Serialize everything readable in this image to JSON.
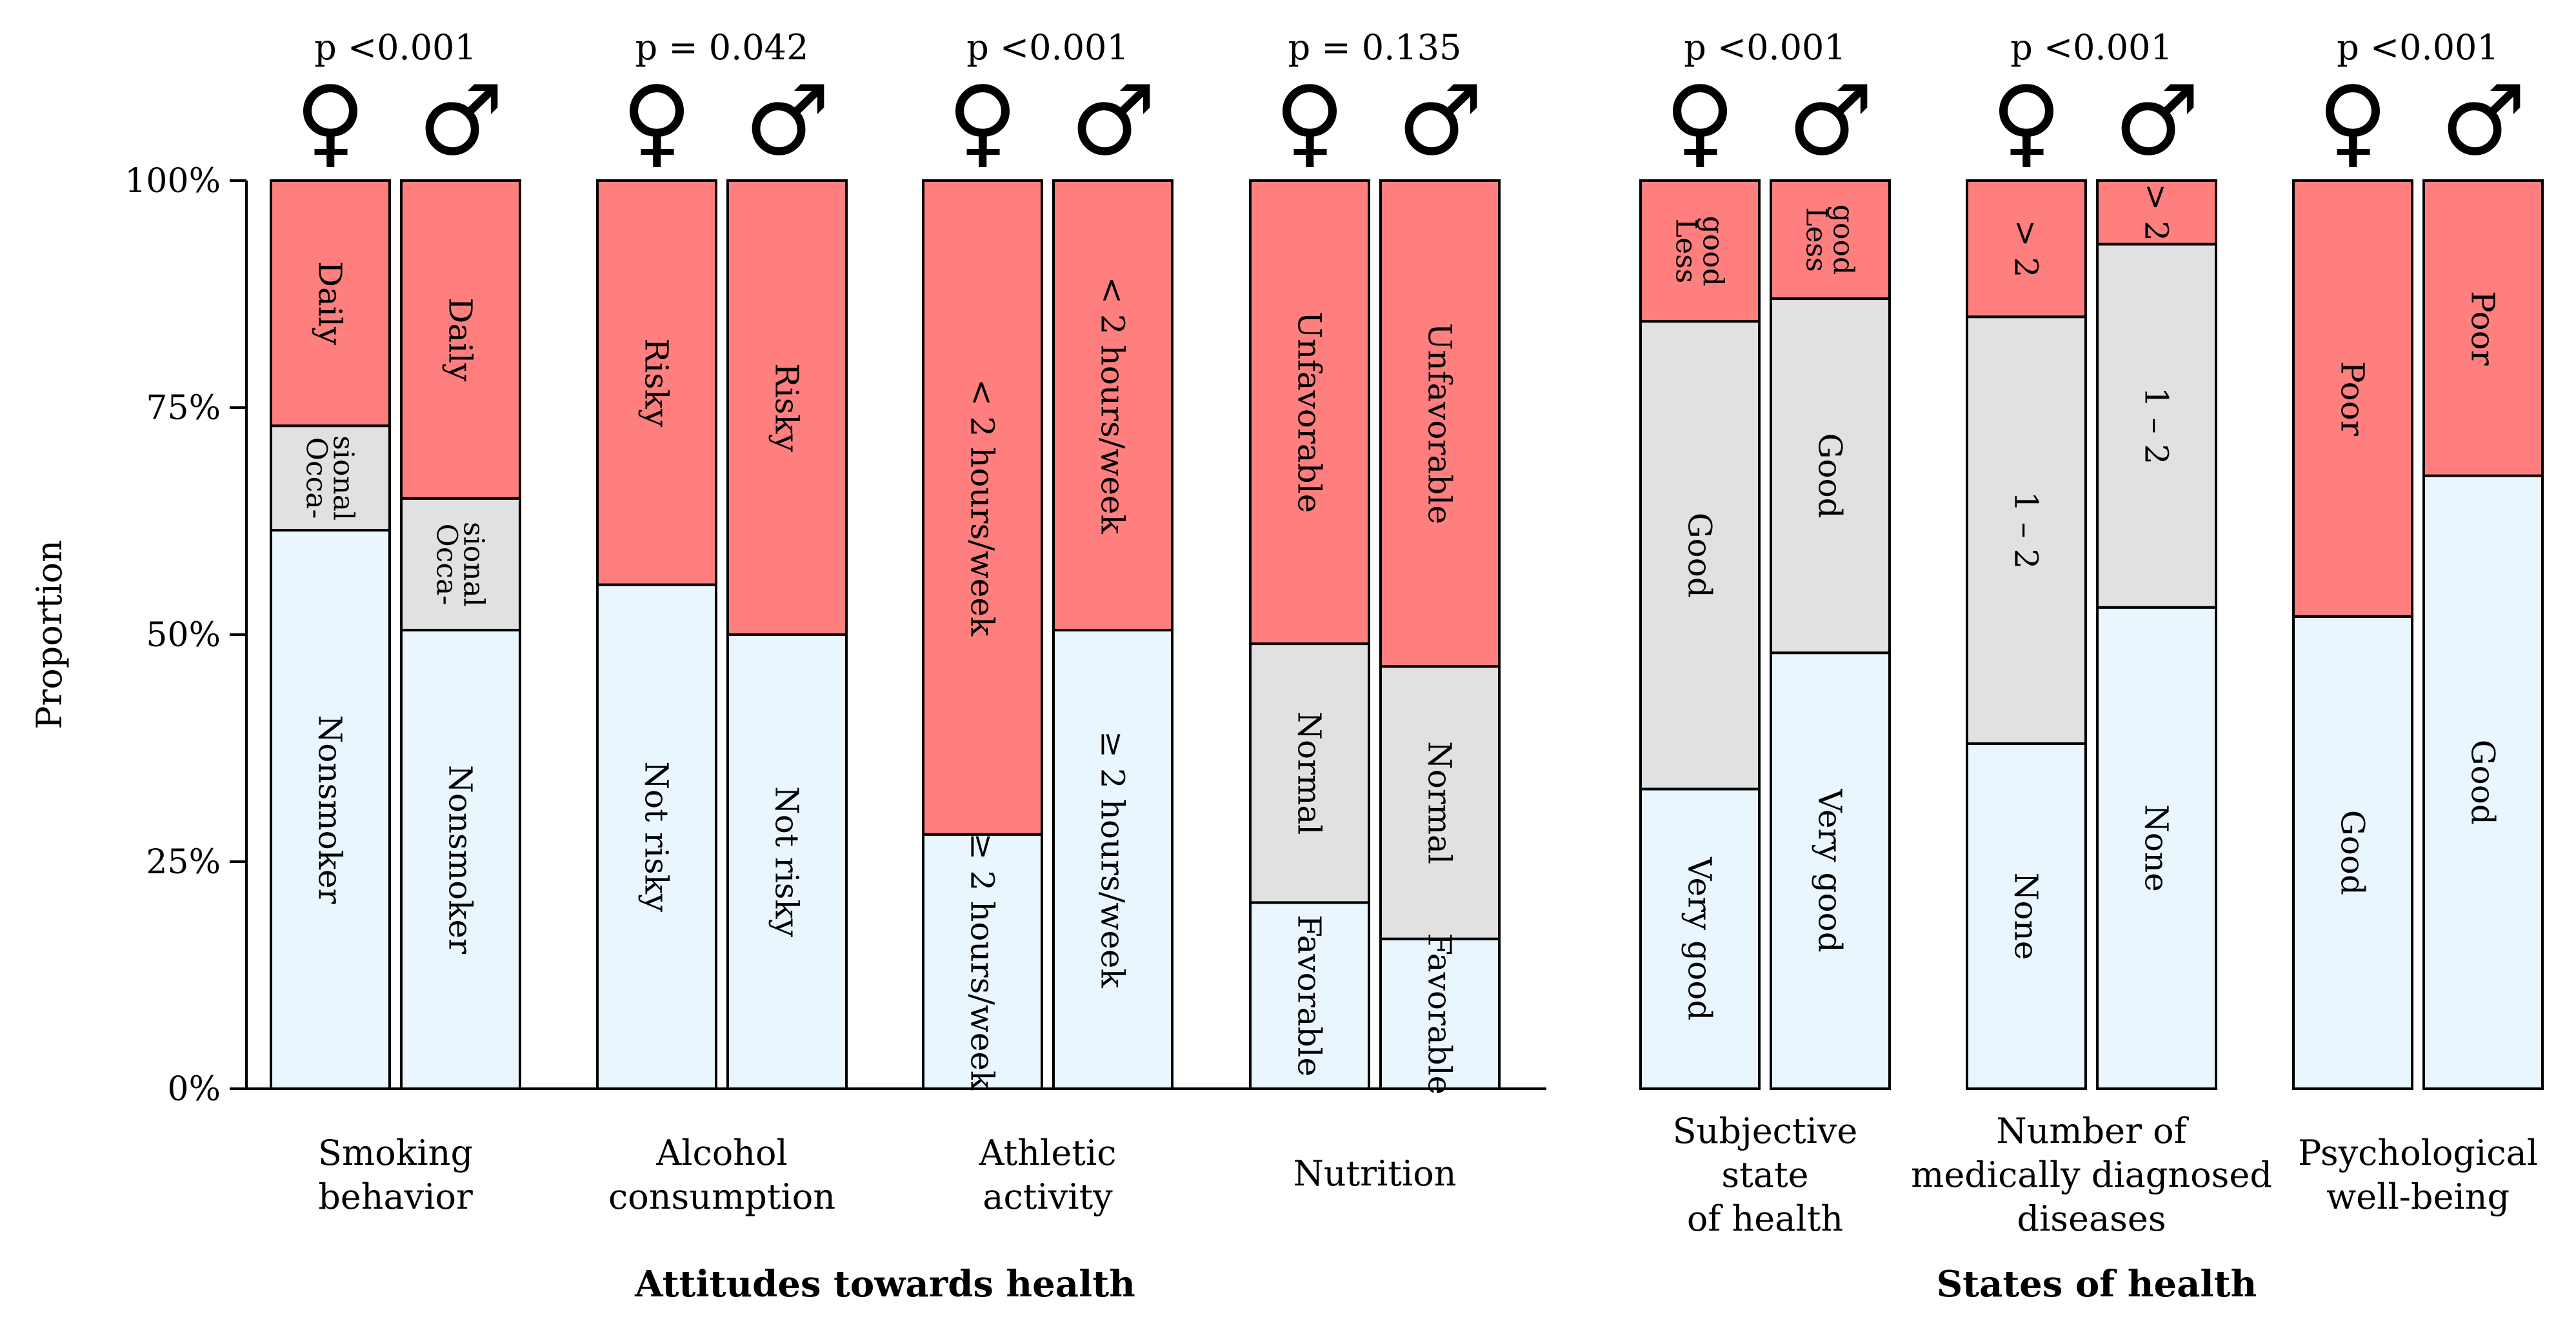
{
  "chart_data": {
    "type": "stacked-bar",
    "ylabel": "Proportion",
    "ylim": [
      0,
      100
    ],
    "yticks": [
      {
        "value": 0,
        "label": "0%"
      },
      {
        "value": 25,
        "label": "25%"
      },
      {
        "value": 50,
        "label": "50%"
      },
      {
        "value": 75,
        "label": "75%"
      },
      {
        "value": 100,
        "label": "100%"
      }
    ],
    "colors": {
      "low": "#eaf6fd",
      "mid": "#e1e1e1",
      "high": "#ff7f7f",
      "edge": "#000000"
    },
    "female_symbol": "♀",
    "male_symbol": "♂",
    "groups": [
      {
        "category": "Smoking behavior",
        "p_value": "p <0.001",
        "section": "Attitudes towards health",
        "bars": [
          {
            "sex": "female",
            "segments": [
              {
                "label": "Nonsmoker",
                "value": 61.5,
                "level": "low"
              },
              {
                "label": "Occa- sional",
                "value": 11.5,
                "level": "mid"
              },
              {
                "label": "Daily",
                "value": 27,
                "level": "high"
              }
            ]
          },
          {
            "sex": "male",
            "segments": [
              {
                "label": "Nonsmoker",
                "value": 50.5,
                "level": "low"
              },
              {
                "label": "Occa- sional",
                "value": 14.5,
                "level": "mid"
              },
              {
                "label": "Daily",
                "value": 35,
                "level": "high"
              }
            ]
          }
        ]
      },
      {
        "category": "Alcohol consumption",
        "p_value": "p = 0.042",
        "section": "Attitudes towards health",
        "bars": [
          {
            "sex": "female",
            "segments": [
              {
                "label": "Not risky",
                "value": 55.5,
                "level": "low"
              },
              {
                "label": "Risky",
                "value": 44.5,
                "level": "high"
              }
            ]
          },
          {
            "sex": "male",
            "segments": [
              {
                "label": "Not risky",
                "value": 50,
                "level": "low"
              },
              {
                "label": "Risky",
                "value": 50,
                "level": "high"
              }
            ]
          }
        ]
      },
      {
        "category": "Athletic activity",
        "p_value": "p <0.001",
        "section": "Attitudes towards health",
        "bars": [
          {
            "sex": "female",
            "segments": [
              {
                "label": "≥ 2 hours/week",
                "value": 28,
                "level": "low"
              },
              {
                "label": "< 2 hours/week",
                "value": 72,
                "level": "high"
              }
            ]
          },
          {
            "sex": "male",
            "segments": [
              {
                "label": "≥ 2 hours/week",
                "value": 50.5,
                "level": "low"
              },
              {
                "label": "< 2 hours/week",
                "value": 49.5,
                "level": "high"
              }
            ]
          }
        ]
      },
      {
        "category": "Nutrition",
        "p_value": "p = 0.135",
        "section": "Attitudes towards health",
        "bars": [
          {
            "sex": "female",
            "segments": [
              {
                "label": "Favorable",
                "value": 20.5,
                "level": "low"
              },
              {
                "label": "Normal",
                "value": 28.5,
                "level": "mid"
              },
              {
                "label": "Unfavorable",
                "value": 51,
                "level": "high"
              }
            ]
          },
          {
            "sex": "male",
            "segments": [
              {
                "label": "Favorable",
                "value": 16.5,
                "level": "low"
              },
              {
                "label": "Normal",
                "value": 30,
                "level": "mid"
              },
              {
                "label": "Unfavorable",
                "value": 53.5,
                "level": "high"
              }
            ]
          }
        ]
      },
      {
        "category": "Subjective state of health",
        "p_value": "p <0.001",
        "section": "States of health",
        "bars": [
          {
            "sex": "female",
            "segments": [
              {
                "label": "Very good",
                "value": 33,
                "level": "low"
              },
              {
                "label": "Good",
                "value": 51.5,
                "level": "mid"
              },
              {
                "label": "Less good",
                "value": 15.5,
                "level": "high"
              }
            ]
          },
          {
            "sex": "male",
            "segments": [
              {
                "label": "Very good",
                "value": 48,
                "level": "low"
              },
              {
                "label": "Good",
                "value": 39,
                "level": "mid"
              },
              {
                "label": "Less good",
                "value": 13,
                "level": "high"
              }
            ]
          }
        ]
      },
      {
        "category": "Number of medically diagnosed diseases",
        "p_value": "p <0.001",
        "section": "States of health",
        "bars": [
          {
            "sex": "female",
            "segments": [
              {
                "label": "None",
                "value": 38,
                "level": "low"
              },
              {
                "label": "1 – 2",
                "value": 47,
                "level": "mid"
              },
              {
                "label": "> 2",
                "value": 15,
                "level": "high"
              }
            ]
          },
          {
            "sex": "male",
            "segments": [
              {
                "label": "None",
                "value": 53,
                "level": "low"
              },
              {
                "label": "1 – 2",
                "value": 40,
                "level": "mid"
              },
              {
                "label": "> 2",
                "value": 7,
                "level": "high"
              }
            ]
          }
        ]
      },
      {
        "category": "Psychological well-being",
        "p_value": "p <0.001",
        "section": "States of health",
        "bars": [
          {
            "sex": "female",
            "segments": [
              {
                "label": "Good",
                "value": 52,
                "level": "low"
              },
              {
                "label": "Poor",
                "value": 48,
                "level": "high"
              }
            ]
          },
          {
            "sex": "male",
            "segments": [
              {
                "label": "Good",
                "value": 67.5,
                "level": "low"
              },
              {
                "label": "Poor",
                "value": 32.5,
                "level": "high"
              }
            ]
          }
        ]
      }
    ],
    "sections": [
      "Attitudes towards health",
      "States of health"
    ]
  }
}
